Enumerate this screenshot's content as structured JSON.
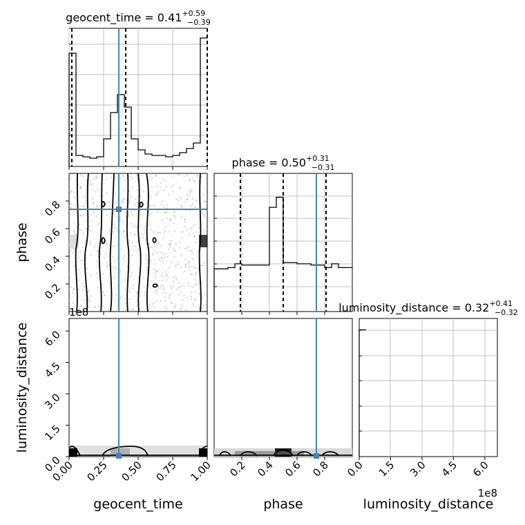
{
  "chart_data": [
    {
      "panel": "hist-geocent_time",
      "type": "step-histogram",
      "title": {
        "name": "geocent_time",
        "value": "0.41",
        "plus": "+0.59",
        "minus": "−0.39"
      },
      "xlim": [
        0,
        1.0
      ],
      "bins": [
        0.0,
        0.05,
        0.1,
        0.15,
        0.2,
        0.25,
        0.3,
        0.35,
        0.4,
        0.45,
        0.5,
        0.55,
        0.6,
        0.65,
        0.7,
        0.75,
        0.8,
        0.85,
        0.9,
        0.95,
        1.0
      ],
      "counts": [
        0.82,
        0.08,
        0.07,
        0.06,
        0.07,
        0.2,
        0.39,
        0.52,
        0.43,
        0.2,
        0.12,
        0.09,
        0.08,
        0.08,
        0.07,
        0.08,
        0.1,
        0.13,
        0.17,
        0.93
      ],
      "quantiles": [
        0.02,
        0.41,
        1.0
      ],
      "truth": 0.36
    },
    {
      "panel": "hist-phase",
      "type": "step-histogram",
      "title": {
        "name": "phase",
        "value": "0.50",
        "plus": "+0.31",
        "minus": "−0.31"
      },
      "xlim": [
        0,
        1.0
      ],
      "bins": [
        0.0,
        0.05,
        0.1,
        0.15,
        0.2,
        0.25,
        0.3,
        0.35,
        0.4,
        0.45,
        0.5,
        0.55,
        0.6,
        0.65,
        0.7,
        0.75,
        0.8,
        0.85,
        0.9,
        0.95,
        1.0
      ],
      "counts": [
        0.34,
        0.34,
        0.35,
        0.38,
        0.37,
        0.37,
        0.37,
        0.37,
        0.83,
        0.91,
        0.39,
        0.39,
        0.38,
        0.38,
        0.37,
        0.37,
        0.35,
        0.38,
        0.35,
        0.35
      ],
      "quantiles": [
        0.19,
        0.5,
        0.81
      ],
      "truth": 0.74
    },
    {
      "panel": "hist-luminosity_distance",
      "type": "step-histogram",
      "title": {
        "name": "luminosity_distance",
        "value": "0.32",
        "plus": "+0.41",
        "minus": "−0.32"
      },
      "xlim": [
        0,
        6.6
      ],
      "offset": "1e8",
      "bins": [
        0.0,
        0.33
      ],
      "counts": [
        1.0
      ]
    },
    {
      "panel": "2d-phase-vs-geocent_time",
      "type": "2d-density",
      "x": "geocent_time",
      "y": "phase",
      "xlim": [
        0,
        1.0
      ],
      "ylim": [
        0,
        1.0
      ],
      "density": "samples concentrated near x=0 and x=1 with a vertical band at x≈0.36; nearly uniform in phase",
      "truth": [
        0.36,
        0.74
      ]
    },
    {
      "panel": "2d-luminosity_distance-vs-geocent_time",
      "type": "2d-density",
      "x": "geocent_time",
      "y": "luminosity_distance",
      "xlim": [
        0,
        1.0
      ],
      "ylim": [
        0,
        6.6
      ],
      "offset": "1e8",
      "density": "all mass along the bottom edge near luminosity_distance ≈ 0.2",
      "truth": [
        0.36,
        0.0
      ]
    },
    {
      "panel": "2d-luminosity_distance-vs-phase",
      "type": "2d-density",
      "x": "phase",
      "y": "luminosity_distance",
      "xlim": [
        0,
        1.0
      ],
      "ylim": [
        0,
        6.6
      ],
      "offset": "1e8",
      "density": "all mass along the bottom edge, densest near phase 0.5",
      "truth": [
        0.74,
        0.0
      ]
    }
  ],
  "axes": {
    "bottom_labels": [
      "geocent_time",
      "phase",
      "luminosity_distance"
    ],
    "left_labels": [
      "phase",
      "luminosity_distance"
    ],
    "geocent_ticks": [
      "0.00",
      "0.25",
      "0.50",
      "0.75",
      "1.00"
    ],
    "phase_ticks": [
      "0.2",
      "0.4",
      "0.6",
      "0.8"
    ],
    "lumi_ticks": [
      "0.0",
      "1.5",
      "3.0",
      "4.5",
      "6.0"
    ],
    "offset_text": "1e8"
  },
  "colors": {
    "truth": "#4682b4",
    "line": "#000000",
    "grid": "#c0c0c0",
    "scatter": "#a9a9a9"
  }
}
